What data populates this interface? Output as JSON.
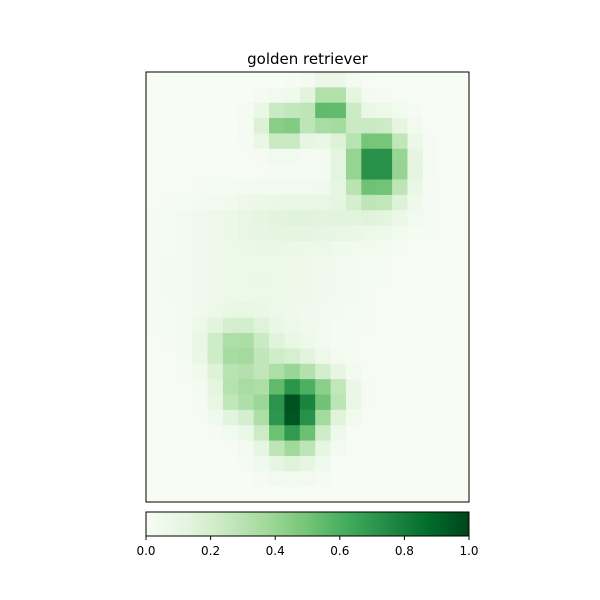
{
  "chart_data": {
    "type": "heatmap",
    "title": "golden retriever",
    "colormap": "Greens",
    "colormap_stops": [
      "#f7fcf5",
      "#e5f5e0",
      "#c7e9c0",
      "#a1d99b",
      "#74c476",
      "#41ab5d",
      "#238b45",
      "#006d2c",
      "#00441b"
    ],
    "grid": false,
    "x_ticks_visible": false,
    "y_ticks_visible": false,
    "grid_size": {
      "rows": 28,
      "cols": 21
    },
    "blobs": [
      {
        "row": 5.5,
        "col": 14.5,
        "spread_rows": 1.6,
        "spread_cols": 1.3,
        "intensity": 0.82
      },
      {
        "row": 2.0,
        "col": 11.5,
        "spread_rows": 1.0,
        "spread_cols": 1.0,
        "intensity": 0.6
      },
      {
        "row": 3.0,
        "col": 8.5,
        "spread_rows": 0.9,
        "spread_cols": 1.0,
        "intensity": 0.5
      },
      {
        "row": 21.5,
        "col": 9.0,
        "spread_rows": 1.8,
        "spread_cols": 1.3,
        "intensity": 0.98
      },
      {
        "row": 17.5,
        "col": 5.5,
        "spread_rows": 1.2,
        "spread_cols": 1.5,
        "intensity": 0.35
      },
      {
        "row": 20.5,
        "col": 5.5,
        "spread_rows": 1.2,
        "spread_cols": 1.0,
        "intensity": 0.32
      },
      {
        "row": 20.5,
        "col": 11.5,
        "spread_rows": 1.0,
        "spread_cols": 1.0,
        "intensity": 0.28
      },
      {
        "row": 9.0,
        "col": 10.0,
        "spread_rows": 1.2,
        "spread_cols": 4.0,
        "intensity": 0.12
      },
      {
        "row": 13.0,
        "col": 7.0,
        "spread_rows": 3.0,
        "spread_cols": 4.0,
        "intensity": 0.08
      }
    ],
    "colorbar": {
      "range": [
        0.0,
        1.0
      ],
      "ticks": [
        "0.0",
        "0.2",
        "0.4",
        "0.6",
        "0.8",
        "1.0"
      ]
    }
  }
}
